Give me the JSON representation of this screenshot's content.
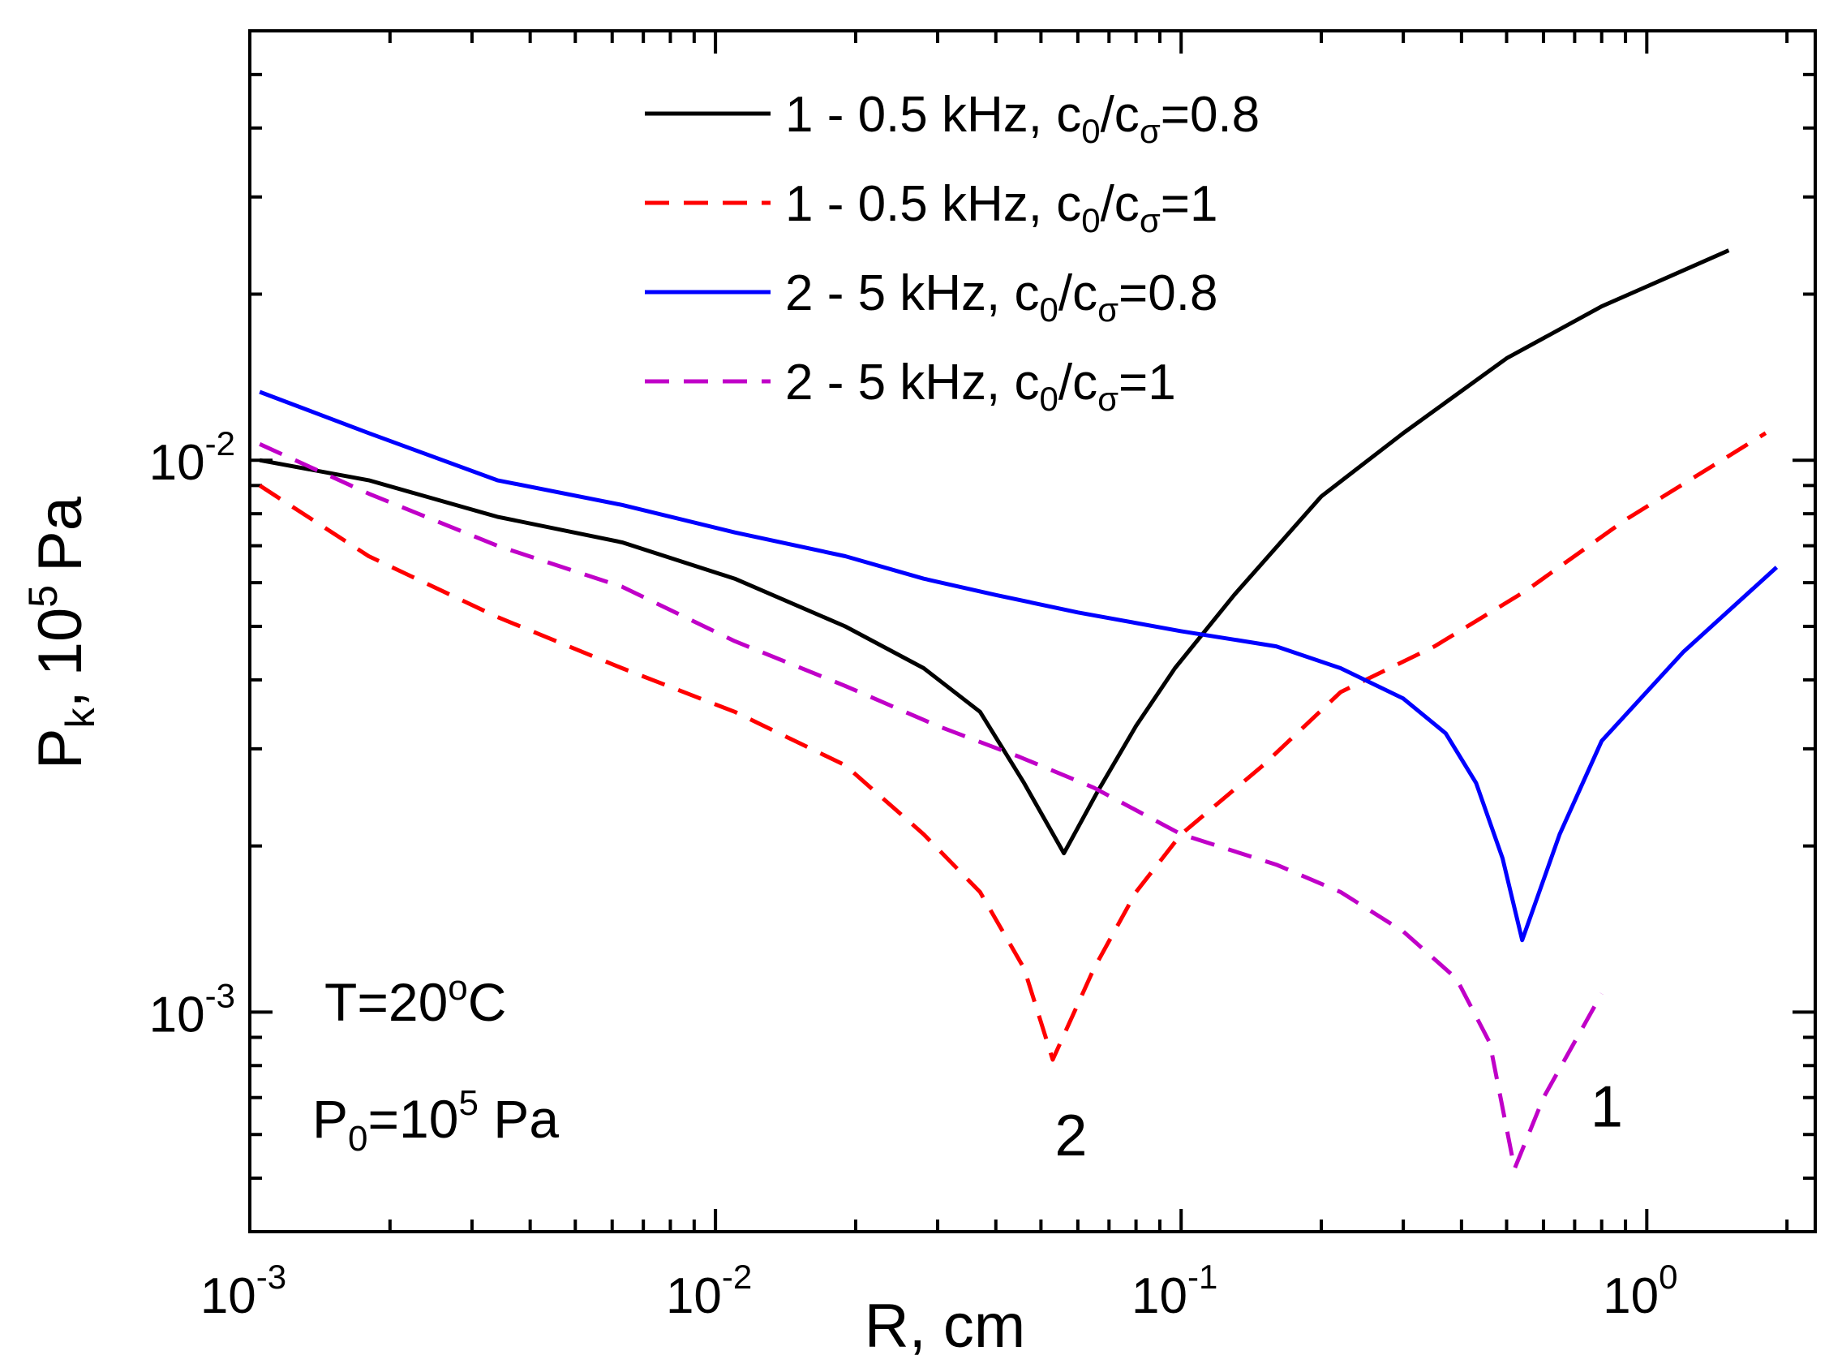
{
  "chart_data": {
    "type": "line",
    "xscale": "log",
    "yscale": "log",
    "xlim": [
      0.001,
      2.3
    ],
    "ylim": [
      0.0004,
      0.06
    ],
    "xlabel": "R, cm",
    "ylabel": {
      "base": "P",
      "sub": "k",
      "comma": ",",
      "mult": "10",
      "exp": "5",
      "unit": "Pa"
    },
    "xticks": [
      {
        "value": 0.001,
        "base": "10",
        "exp": "-3"
      },
      {
        "value": 0.01,
        "base": "10",
        "exp": "-2"
      },
      {
        "value": 0.1,
        "base": "10",
        "exp": "-1"
      },
      {
        "value": 1,
        "base": "10",
        "exp": "0"
      }
    ],
    "yticks": [
      {
        "value": 0.001,
        "base": "10",
        "exp": "-3"
      },
      {
        "value": 0.01,
        "base": "10",
        "exp": "-2"
      }
    ],
    "series": [
      {
        "name": "1 - 0.5 kHz, c0/cσ=0.8",
        "legend": {
          "prefix": "1 - 0.5 kHz, c",
          "sub1": "0",
          "mid": "/c",
          "sub2": "σ",
          "suffix": "=0.8"
        },
        "color": "#000000",
        "dash": "solid",
        "points": [
          [
            0.00105,
            0.01
          ],
          [
            0.0018,
            0.0092
          ],
          [
            0.0034,
            0.0079
          ],
          [
            0.0063,
            0.0071
          ],
          [
            0.011,
            0.0061
          ],
          [
            0.019,
            0.005
          ],
          [
            0.028,
            0.0042
          ],
          [
            0.037,
            0.0035
          ],
          [
            0.046,
            0.0026
          ],
          [
            0.056,
            0.00194
          ],
          [
            0.066,
            0.0025
          ],
          [
            0.08,
            0.0033
          ],
          [
            0.097,
            0.0042
          ],
          [
            0.13,
            0.0057
          ],
          [
            0.2,
            0.0086
          ],
          [
            0.3,
            0.0112
          ],
          [
            0.5,
            0.0153
          ],
          [
            0.8,
            0.019
          ],
          [
            1.5,
            0.024
          ]
        ]
      },
      {
        "name": "1 - 0.5 kHz, c0/cσ=1",
        "legend": {
          "prefix": "1 - 0.5 kHz, c",
          "sub1": "0",
          "mid": "/c",
          "sub2": "σ",
          "suffix": "=1"
        },
        "color": "#ff0000",
        "dash": "dashed",
        "points": [
          [
            0.00105,
            0.009
          ],
          [
            0.0018,
            0.0067
          ],
          [
            0.0034,
            0.0052
          ],
          [
            0.0063,
            0.0042
          ],
          [
            0.011,
            0.0035
          ],
          [
            0.019,
            0.0028
          ],
          [
            0.028,
            0.0021
          ],
          [
            0.037,
            0.00165
          ],
          [
            0.046,
            0.0012
          ],
          [
            0.053,
            0.00082
          ],
          [
            0.065,
            0.0012
          ],
          [
            0.08,
            0.00165
          ],
          [
            0.1,
            0.0021
          ],
          [
            0.15,
            0.0028
          ],
          [
            0.22,
            0.0038
          ],
          [
            0.35,
            0.0046
          ],
          [
            0.55,
            0.0058
          ],
          [
            0.9,
            0.0078
          ],
          [
            1.8,
            0.0112
          ]
        ]
      },
      {
        "name": "2 - 5 kHz, c0/cσ=0.8",
        "legend": {
          "prefix": "2 - 5 kHz, c",
          "sub1": "0",
          "mid": "/c",
          "sub2": "σ",
          "suffix": "=0.8"
        },
        "color": "#0000ff",
        "dash": "solid",
        "points": [
          [
            0.00105,
            0.0133
          ],
          [
            0.0018,
            0.0112
          ],
          [
            0.0034,
            0.0092
          ],
          [
            0.0063,
            0.0083
          ],
          [
            0.011,
            0.0074
          ],
          [
            0.019,
            0.0067
          ],
          [
            0.028,
            0.0061
          ],
          [
            0.04,
            0.0057
          ],
          [
            0.06,
            0.0053
          ],
          [
            0.1,
            0.0049
          ],
          [
            0.16,
            0.0046
          ],
          [
            0.22,
            0.0042
          ],
          [
            0.3,
            0.0037
          ],
          [
            0.37,
            0.0032
          ],
          [
            0.43,
            0.0026
          ],
          [
            0.49,
            0.0019
          ],
          [
            0.54,
            0.00135
          ],
          [
            0.65,
            0.0021
          ],
          [
            0.8,
            0.0031
          ],
          [
            1.2,
            0.0045
          ],
          [
            1.9,
            0.0064
          ]
        ]
      },
      {
        "name": "2 - 5 kHz, c0/cσ=1",
        "legend": {
          "prefix": "2 - 5 kHz, c",
          "sub1": "0",
          "mid": "/c",
          "sub2": "σ",
          "suffix": "=1"
        },
        "color": "#c000c8",
        "dash": "dashed",
        "points": [
          [
            0.00105,
            0.0107
          ],
          [
            0.0018,
            0.0087
          ],
          [
            0.0034,
            0.007
          ],
          [
            0.0063,
            0.0059
          ],
          [
            0.011,
            0.0047
          ],
          [
            0.019,
            0.0039
          ],
          [
            0.03,
            0.0033
          ],
          [
            0.045,
            0.0029
          ],
          [
            0.065,
            0.00255
          ],
          [
            0.1,
            0.0021
          ],
          [
            0.16,
            0.00185
          ],
          [
            0.22,
            0.00165
          ],
          [
            0.3,
            0.0014
          ],
          [
            0.39,
            0.00115
          ],
          [
            0.46,
            0.00088
          ],
          [
            0.52,
            0.00052
          ],
          [
            0.6,
            0.0007
          ],
          [
            0.8,
            0.00108
          ]
        ]
      }
    ],
    "annotations": {
      "temperature": {
        "prefix": "T=20",
        "sup": "o",
        "suffix": "C"
      },
      "pressure": {
        "prefix": "P",
        "sub": "0",
        "eq": "=10",
        "sup": "5",
        "suffix": " Pa"
      },
      "curve_labels": [
        {
          "text": "2",
          "x": 0.058,
          "y": 0.00055
        },
        {
          "text": "1",
          "x": 0.82,
          "y": 0.00062
        }
      ]
    }
  }
}
